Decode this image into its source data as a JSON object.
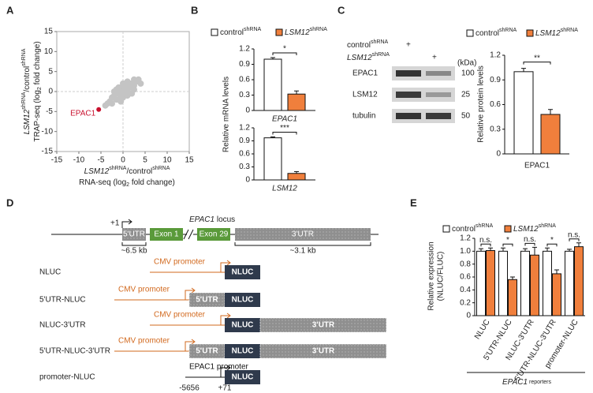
{
  "panels": [
    "A",
    "B",
    "C",
    "D",
    "E"
  ],
  "chart_data": [
    {
      "type": "scatter",
      "xlabel": [
        "LSM12",
        "shRNA",
        "/control",
        "shRNA"
      ],
      "xlabel2": [
        "RNA-seq (log",
        "2",
        " fold change)"
      ],
      "ylabel": [
        "LSM12",
        "shRNA",
        "/control",
        "shRNA"
      ],
      "ylabel2": [
        "TRAP-seq (log",
        "2",
        " fold change)"
      ],
      "xlim": [
        -15,
        15
      ],
      "ylim": [
        -15,
        15
      ],
      "xticks": [
        -15,
        -10,
        -5,
        0,
        5,
        10,
        15
      ],
      "yticks": [
        -15,
        -10,
        -5,
        0,
        5,
        10,
        15
      ],
      "zero_lines": true,
      "series": [
        {
          "color": "#c4c4c4",
          "x": [
            -3,
            -2.5,
            -2,
            -1.5,
            -1,
            -0.5,
            0,
            0.5,
            1,
            1.5,
            2,
            2.5,
            3,
            -2,
            -1,
            0,
            1,
            2,
            -1.5,
            -0.5,
            0.5,
            1.5,
            2.5,
            -3.5,
            3.5,
            -2.5,
            -1,
            0,
            1,
            2.5,
            0.5,
            -0.5,
            1,
            -1,
            0,
            4,
            -4,
            2,
            -2,
            0.3
          ],
          "values": [
            -2.5,
            -3,
            -1.5,
            -2,
            -0.5,
            -1,
            0.5,
            0,
            1.5,
            1,
            2,
            1.5,
            2.5,
            -1,
            -2,
            -1.5,
            0,
            1,
            0.5,
            1,
            -0.5,
            2,
            0.5,
            -3,
            3,
            -1.5,
            1,
            2,
            -1,
            3,
            1,
            -2.5,
            2.5,
            0,
            -0.5,
            2,
            -3.5,
            -0.5,
            0,
            0.3
          ]
        },
        {
          "name": "EPAC1",
          "color": "#c8102e",
          "x": [
            -5.5
          ],
          "values": [
            -4.5
          ]
        }
      ]
    },
    {
      "type": "bar",
      "ylabel": "Relative mRNA levels",
      "xlabel": "EPAC1",
      "ylim": [
        0,
        1.2
      ],
      "yticks": [
        0,
        0.3,
        0.6,
        0.9,
        1.2
      ],
      "sig": [
        "*"
      ],
      "series": [
        {
          "name": "control",
          "name_sup": "shRNA",
          "color": "#ffffff",
          "values": [
            1.0
          ],
          "errors": [
            0.03
          ]
        },
        {
          "name": "LSM12",
          "name_sup": "shRNA",
          "color": "#f07f3c",
          "values": [
            0.32
          ],
          "errors": [
            0.06
          ]
        }
      ]
    },
    {
      "type": "bar",
      "xlabel": "LSM12",
      "ylim": [
        0,
        1.2
      ],
      "yticks": [
        0,
        0.3,
        0.6,
        0.9,
        1.2
      ],
      "sig": [
        "***"
      ],
      "series": [
        {
          "color": "#ffffff",
          "values": [
            0.97
          ],
          "errors": [
            0.02
          ]
        },
        {
          "color": "#f07f3c",
          "values": [
            0.15
          ],
          "errors": [
            0.04
          ]
        }
      ]
    },
    {
      "type": "bar",
      "ylabel": "Relative protein levels",
      "xlabel": "EPAC1",
      "ylim": [
        0,
        1.2
      ],
      "yticks": [
        0,
        0.3,
        0.6,
        0.9,
        1.2
      ],
      "sig": [
        "**"
      ],
      "series": [
        {
          "name": "control",
          "name_sup": "shRNA",
          "color": "#ffffff",
          "values": [
            1.0
          ],
          "errors": [
            0.04
          ]
        },
        {
          "name": "LSM12",
          "name_sup": "shRNA",
          "color": "#f07f3c",
          "values": [
            0.48
          ],
          "errors": [
            0.06
          ]
        }
      ]
    },
    {
      "type": "bar",
      "ylabel": "Relative expression",
      "ylabel2": "(NLUC/FLUC)",
      "xlabel": [
        "EPAC1",
        " reporters"
      ],
      "categories": [
        "NLUC",
        "5'UTR-NLUC",
        "NLUC-3'UTR",
        "5'UTR-NLUC-3'UTR",
        "promoter-NLUC"
      ],
      "ylim": [
        0,
        1.2
      ],
      "yticks": [
        0,
        0.2,
        0.4,
        0.6,
        0.8,
        {
          "value": 1,
          "label": "1.0"
        },
        1.2
      ],
      "sig": [
        "n.s.",
        "*",
        "n.s.",
        "*",
        "n.s."
      ],
      "series": [
        {
          "name": "control",
          "name_sup": "shRNA",
          "color": "#ffffff",
          "values": [
            1,
            1,
            1,
            1,
            1
          ],
          "errors": [
            0.04,
            0.05,
            0.04,
            0.05,
            0.03
          ]
        },
        {
          "name": "LSM12",
          "name_sup": "shRNA",
          "color": "#f07f3c",
          "values": [
            1.01,
            0.56,
            0.94,
            0.65,
            1.07
          ],
          "errors": [
            0.04,
            0.04,
            0.12,
            0.06,
            0.06
          ]
        }
      ]
    }
  ],
  "blot": {
    "conditions": [
      [
        "control",
        "shRNA"
      ],
      [
        "LSM12",
        "shRNA"
      ]
    ],
    "plus": [
      "+",
      "+"
    ],
    "kda_header": "(kDa)",
    "bands": [
      {
        "name": "EPAC1",
        "kda": "100"
      },
      {
        "name": "LSM12",
        "kda": "25"
      },
      {
        "name": "tubulin",
        "kda": "50"
      }
    ]
  },
  "diagram": {
    "title": [
      "EPAC1",
      " locus"
    ],
    "tss": "+1",
    "locus": [
      "5'UTR",
      "Exon 1",
      "Exon 29",
      "3'UTR"
    ],
    "sizes": [
      "~6.5 kb",
      "~3.1 kb"
    ],
    "constructs": [
      {
        "name": "NLUC",
        "promoter": "CMV promoter",
        "parts": [
          "NLUC"
        ]
      },
      {
        "name": "5'UTR-NLUC",
        "promoter": "CMV promoter",
        "parts": [
          "5'UTR",
          "NLUC"
        ]
      },
      {
        "name": "NLUC-3'UTR",
        "promoter": "CMV promoter",
        "parts": [
          "NLUC",
          "3'UTR"
        ]
      },
      {
        "name": "5'UTR-NLUC-3'UTR",
        "promoter": "CMV promoter",
        "parts": [
          "5'UTR",
          "NLUC",
          "3'UTR"
        ]
      },
      {
        "name": "promoter-NLUC",
        "promoter": "EPAC1 promoter",
        "parts": [
          "NLUC"
        ],
        "coords": [
          "-5656",
          "+71"
        ]
      }
    ]
  }
}
